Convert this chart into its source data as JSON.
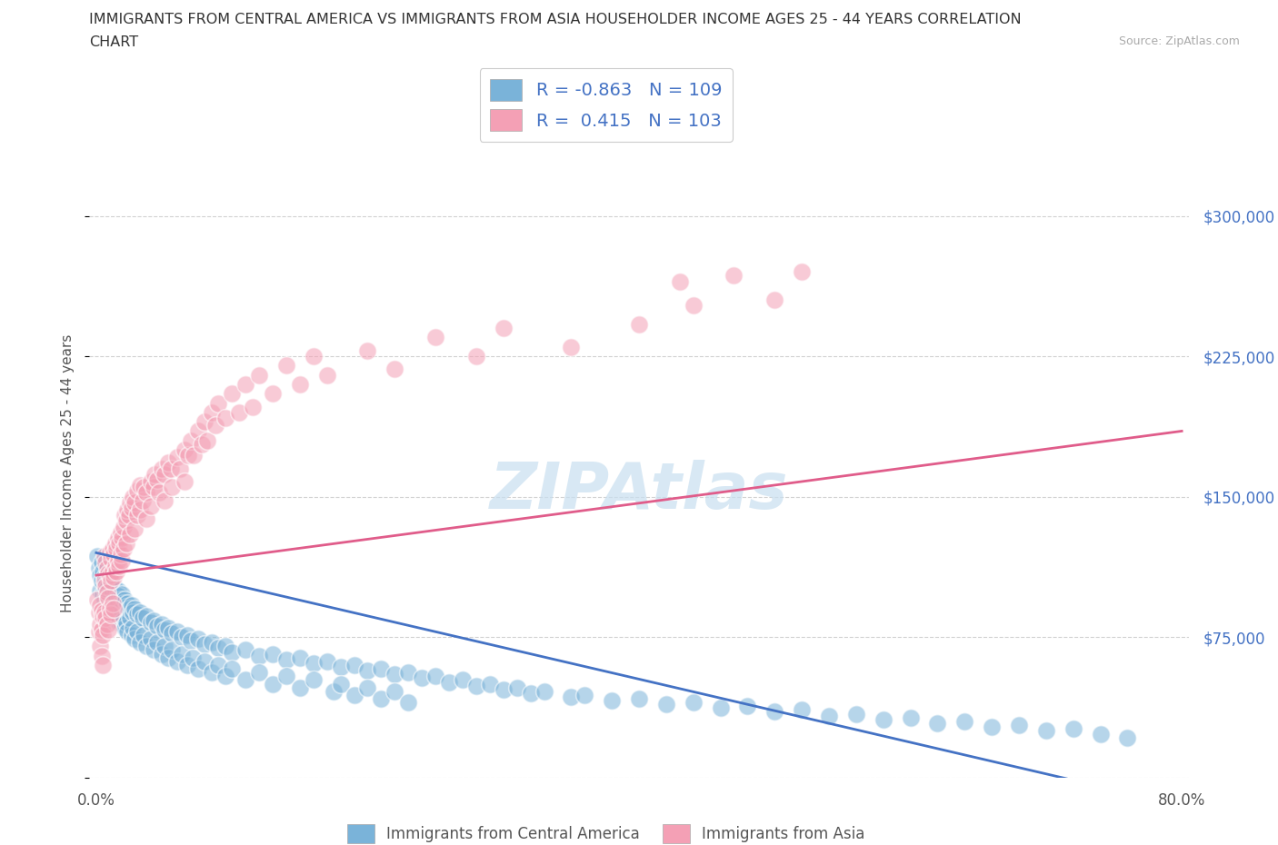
{
  "title_line1": "IMMIGRANTS FROM CENTRAL AMERICA VS IMMIGRANTS FROM ASIA HOUSEHOLDER INCOME AGES 25 - 44 YEARS CORRELATION",
  "title_line2": "CHART",
  "source_text": "Source: ZipAtlas.com",
  "ylabel": "Householder Income Ages 25 - 44 years",
  "xlim": [
    -0.005,
    0.805
  ],
  "ylim": [
    0,
    325000
  ],
  "yticks": [
    0,
    75000,
    150000,
    225000,
    300000
  ],
  "xticks": [
    0.0,
    0.1,
    0.2,
    0.3,
    0.4,
    0.5,
    0.6,
    0.7,
    0.8
  ],
  "color_blue": "#7ab3d9",
  "color_pink": "#f4a0b5",
  "color_blue_line": "#4472c4",
  "color_pink_line": "#e05c8a",
  "watermark": "ZIPAtlas",
  "background_color": "#ffffff",
  "grid_color": "#cccccc",
  "blue_scatter": [
    [
      0.001,
      118000
    ],
    [
      0.002,
      112000
    ],
    [
      0.003,
      108000
    ],
    [
      0.003,
      100000
    ],
    [
      0.004,
      115000
    ],
    [
      0.004,
      105000
    ],
    [
      0.005,
      110000
    ],
    [
      0.005,
      98000
    ],
    [
      0.006,
      107000
    ],
    [
      0.006,
      95000
    ],
    [
      0.007,
      104000
    ],
    [
      0.007,
      100000
    ],
    [
      0.008,
      108000
    ],
    [
      0.008,
      95000
    ],
    [
      0.009,
      102000
    ],
    [
      0.009,
      92000
    ],
    [
      0.01,
      106000
    ],
    [
      0.01,
      98000
    ],
    [
      0.011,
      104000
    ],
    [
      0.011,
      90000
    ],
    [
      0.012,
      100000
    ],
    [
      0.012,
      93000
    ],
    [
      0.013,
      102000
    ],
    [
      0.013,
      88000
    ],
    [
      0.014,
      98000
    ],
    [
      0.014,
      91000
    ],
    [
      0.015,
      96000
    ],
    [
      0.015,
      86000
    ],
    [
      0.016,
      100000
    ],
    [
      0.016,
      89000
    ],
    [
      0.017,
      97000
    ],
    [
      0.017,
      83000
    ],
    [
      0.018,
      95000
    ],
    [
      0.018,
      87000
    ],
    [
      0.019,
      98000
    ],
    [
      0.019,
      82000
    ],
    [
      0.02,
      93000
    ],
    [
      0.02,
      85000
    ],
    [
      0.021,
      95000
    ],
    [
      0.021,
      80000
    ],
    [
      0.022,
      91000
    ],
    [
      0.022,
      83000
    ],
    [
      0.023,
      93000
    ],
    [
      0.023,
      78000
    ],
    [
      0.024,
      90000
    ],
    [
      0.025,
      85000
    ],
    [
      0.026,
      92000
    ],
    [
      0.026,
      76000
    ],
    [
      0.027,
      88000
    ],
    [
      0.027,
      80000
    ],
    [
      0.028,
      90000
    ],
    [
      0.028,
      74000
    ],
    [
      0.03,
      87000
    ],
    [
      0.03,
      78000
    ],
    [
      0.032,
      88000
    ],
    [
      0.032,
      72000
    ],
    [
      0.034,
      85000
    ],
    [
      0.035,
      76000
    ],
    [
      0.037,
      86000
    ],
    [
      0.037,
      70000
    ],
    [
      0.04,
      83000
    ],
    [
      0.04,
      74000
    ],
    [
      0.042,
      84000
    ],
    [
      0.042,
      68000
    ],
    [
      0.045,
      81000
    ],
    [
      0.045,
      72000
    ],
    [
      0.048,
      82000
    ],
    [
      0.048,
      66000
    ],
    [
      0.05,
      79000
    ],
    [
      0.05,
      70000
    ],
    [
      0.053,
      80000
    ],
    [
      0.053,
      64000
    ],
    [
      0.056,
      77000
    ],
    [
      0.056,
      68000
    ],
    [
      0.06,
      78000
    ],
    [
      0.06,
      62000
    ],
    [
      0.063,
      75000
    ],
    [
      0.063,
      66000
    ],
    [
      0.067,
      76000
    ],
    [
      0.067,
      60000
    ],
    [
      0.07,
      73000
    ],
    [
      0.071,
      64000
    ],
    [
      0.075,
      74000
    ],
    [
      0.075,
      58000
    ],
    [
      0.08,
      71000
    ],
    [
      0.08,
      62000
    ],
    [
      0.085,
      72000
    ],
    [
      0.085,
      56000
    ],
    [
      0.09,
      69000
    ],
    [
      0.09,
      60000
    ],
    [
      0.095,
      70000
    ],
    [
      0.095,
      54000
    ],
    [
      0.1,
      67000
    ],
    [
      0.1,
      58000
    ],
    [
      0.11,
      68000
    ],
    [
      0.11,
      52000
    ],
    [
      0.12,
      65000
    ],
    [
      0.12,
      56000
    ],
    [
      0.13,
      66000
    ],
    [
      0.13,
      50000
    ],
    [
      0.14,
      63000
    ],
    [
      0.14,
      54000
    ],
    [
      0.15,
      64000
    ],
    [
      0.15,
      48000
    ],
    [
      0.16,
      61000
    ],
    [
      0.16,
      52000
    ],
    [
      0.17,
      62000
    ],
    [
      0.175,
      46000
    ],
    [
      0.18,
      59000
    ],
    [
      0.18,
      50000
    ],
    [
      0.19,
      60000
    ],
    [
      0.19,
      44000
    ],
    [
      0.2,
      57000
    ],
    [
      0.2,
      48000
    ],
    [
      0.21,
      58000
    ],
    [
      0.21,
      42000
    ],
    [
      0.22,
      55000
    ],
    [
      0.22,
      46000
    ],
    [
      0.23,
      56000
    ],
    [
      0.23,
      40000
    ],
    [
      0.24,
      53000
    ],
    [
      0.25,
      54000
    ],
    [
      0.26,
      51000
    ],
    [
      0.27,
      52000
    ],
    [
      0.28,
      49000
    ],
    [
      0.29,
      50000
    ],
    [
      0.3,
      47000
    ],
    [
      0.31,
      48000
    ],
    [
      0.32,
      45000
    ],
    [
      0.33,
      46000
    ],
    [
      0.35,
      43000
    ],
    [
      0.36,
      44000
    ],
    [
      0.38,
      41000
    ],
    [
      0.4,
      42000
    ],
    [
      0.42,
      39000
    ],
    [
      0.44,
      40000
    ],
    [
      0.46,
      37000
    ],
    [
      0.48,
      38000
    ],
    [
      0.5,
      35000
    ],
    [
      0.52,
      36000
    ],
    [
      0.54,
      33000
    ],
    [
      0.56,
      34000
    ],
    [
      0.58,
      31000
    ],
    [
      0.6,
      32000
    ],
    [
      0.62,
      29000
    ],
    [
      0.64,
      30000
    ],
    [
      0.66,
      27000
    ],
    [
      0.68,
      28000
    ],
    [
      0.7,
      25000
    ],
    [
      0.72,
      26000
    ],
    [
      0.74,
      23000
    ],
    [
      0.76,
      21000
    ]
  ],
  "pink_scatter": [
    [
      0.001,
      95000
    ],
    [
      0.002,
      88000
    ],
    [
      0.002,
      78000
    ],
    [
      0.003,
      92000
    ],
    [
      0.003,
      82000
    ],
    [
      0.003,
      70000
    ],
    [
      0.004,
      89000
    ],
    [
      0.004,
      79000
    ],
    [
      0.004,
      65000
    ],
    [
      0.005,
      86000
    ],
    [
      0.005,
      76000
    ],
    [
      0.005,
      60000
    ],
    [
      0.006,
      118000
    ],
    [
      0.006,
      105000
    ],
    [
      0.006,
      88000
    ],
    [
      0.007,
      115000
    ],
    [
      0.007,
      102000
    ],
    [
      0.007,
      85000
    ],
    [
      0.008,
      112000
    ],
    [
      0.008,
      99000
    ],
    [
      0.008,
      82000
    ],
    [
      0.009,
      109000
    ],
    [
      0.009,
      96000
    ],
    [
      0.009,
      79000
    ],
    [
      0.01,
      120000
    ],
    [
      0.01,
      108000
    ],
    [
      0.01,
      90000
    ],
    [
      0.011,
      117000
    ],
    [
      0.011,
      105000
    ],
    [
      0.011,
      87000
    ],
    [
      0.012,
      122000
    ],
    [
      0.012,
      110000
    ],
    [
      0.012,
      93000
    ],
    [
      0.013,
      119000
    ],
    [
      0.013,
      107000
    ],
    [
      0.013,
      90000
    ],
    [
      0.014,
      125000
    ],
    [
      0.014,
      113000
    ],
    [
      0.015,
      122000
    ],
    [
      0.015,
      110000
    ],
    [
      0.016,
      128000
    ],
    [
      0.016,
      116000
    ],
    [
      0.017,
      125000
    ],
    [
      0.017,
      113000
    ],
    [
      0.018,
      131000
    ],
    [
      0.018,
      119000
    ],
    [
      0.019,
      128000
    ],
    [
      0.019,
      116000
    ],
    [
      0.02,
      134000
    ],
    [
      0.02,
      122000
    ],
    [
      0.021,
      140000
    ],
    [
      0.022,
      137000
    ],
    [
      0.022,
      125000
    ],
    [
      0.023,
      143000
    ],
    [
      0.024,
      140000
    ],
    [
      0.025,
      147000
    ],
    [
      0.025,
      130000
    ],
    [
      0.026,
      144000
    ],
    [
      0.027,
      150000
    ],
    [
      0.028,
      147000
    ],
    [
      0.028,
      133000
    ],
    [
      0.03,
      153000
    ],
    [
      0.03,
      140000
    ],
    [
      0.032,
      156000
    ],
    [
      0.032,
      143000
    ],
    [
      0.034,
      148000
    ],
    [
      0.035,
      155000
    ],
    [
      0.037,
      152000
    ],
    [
      0.037,
      138000
    ],
    [
      0.04,
      158000
    ],
    [
      0.04,
      145000
    ],
    [
      0.042,
      155000
    ],
    [
      0.043,
      162000
    ],
    [
      0.045,
      159000
    ],
    [
      0.046,
      152000
    ],
    [
      0.048,
      165000
    ],
    [
      0.05,
      162000
    ],
    [
      0.05,
      148000
    ],
    [
      0.053,
      168000
    ],
    [
      0.055,
      165000
    ],
    [
      0.056,
      155000
    ],
    [
      0.06,
      171000
    ],
    [
      0.062,
      165000
    ],
    [
      0.065,
      175000
    ],
    [
      0.065,
      158000
    ],
    [
      0.068,
      172000
    ],
    [
      0.07,
      180000
    ],
    [
      0.072,
      172000
    ],
    [
      0.075,
      185000
    ],
    [
      0.078,
      178000
    ],
    [
      0.08,
      190000
    ],
    [
      0.082,
      180000
    ],
    [
      0.085,
      195000
    ],
    [
      0.088,
      188000
    ],
    [
      0.09,
      200000
    ],
    [
      0.095,
      192000
    ],
    [
      0.1,
      205000
    ],
    [
      0.105,
      195000
    ],
    [
      0.11,
      210000
    ],
    [
      0.115,
      198000
    ],
    [
      0.12,
      215000
    ],
    [
      0.13,
      205000
    ],
    [
      0.14,
      220000
    ],
    [
      0.15,
      210000
    ],
    [
      0.16,
      225000
    ],
    [
      0.17,
      215000
    ],
    [
      0.2,
      228000
    ],
    [
      0.22,
      218000
    ],
    [
      0.25,
      235000
    ],
    [
      0.28,
      225000
    ],
    [
      0.3,
      240000
    ],
    [
      0.35,
      230000
    ],
    [
      0.4,
      242000
    ],
    [
      0.43,
      265000
    ],
    [
      0.44,
      252000
    ],
    [
      0.47,
      268000
    ],
    [
      0.5,
      255000
    ],
    [
      0.52,
      270000
    ]
  ],
  "blue_trendline": [
    [
      0.0,
      120000
    ],
    [
      0.8,
      -15000
    ]
  ],
  "pink_trendline": [
    [
      0.0,
      108000
    ],
    [
      0.8,
      185000
    ]
  ],
  "blue_legend_label": "Immigrants from Central America",
  "pink_legend_label": "Immigrants from Asia"
}
